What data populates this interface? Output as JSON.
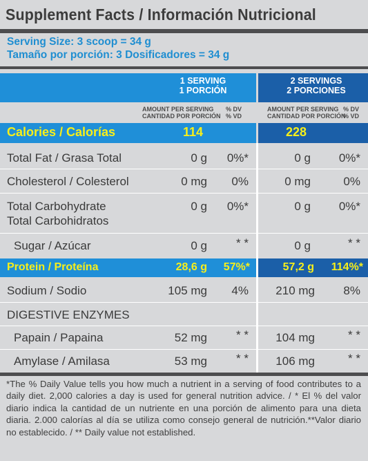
{
  "title": "Supplement Facts / Información Nutricional",
  "serving_size_en": "Serving Size: 3 scoop = 34 g",
  "serving_size_es": "Tamaño por porción:  3 Dosificadores = 34 g",
  "columns": {
    "one": {
      "line1": "1 SERVING",
      "line2": "1 PORCIÓN"
    },
    "two": {
      "line1": "2 SERVINGS",
      "line2": "2 PORCIONES"
    }
  },
  "subheader": {
    "amount_en": "AMOUNT PER SERVING",
    "amount_es": "CANTIDAD POR PORCIÓN",
    "dv_en": "% DV",
    "dv_es": "% VD"
  },
  "calories": {
    "label": "Calories / Calorías",
    "one": "114",
    "two": "228"
  },
  "rows": {
    "fat": {
      "label": "Total Fat / Grasa Total",
      "one_amt": "0 g",
      "one_dv": "0%*",
      "two_amt": "0 g",
      "two_dv": "0%*"
    },
    "chol": {
      "label": "Cholesterol / Colesterol",
      "one_amt": "0 mg",
      "one_dv": "0%",
      "two_amt": "0 mg",
      "two_dv": "0%"
    },
    "carb": {
      "label1": "Total Carbohydrate",
      "label2": "Total Carbohidratos",
      "one_amt": "0  g",
      "one_dv": "0%*",
      "two_amt": "0 g",
      "two_dv": "0%*"
    },
    "sugar": {
      "label": "Sugar / Azúcar",
      "one_amt": "0 g",
      "one_dv": "* *",
      "two_amt": "0 g",
      "two_dv": "* *"
    },
    "sodium": {
      "label": "Sodium / Sodio",
      "one_amt": "105 mg",
      "one_dv": "4%",
      "two_amt": "210 mg",
      "two_dv": "8%"
    },
    "enzymes": {
      "label": "DIGESTIVE ENZYMES"
    },
    "papain": {
      "label": "Papain / Papaina",
      "one_amt": "52 mg",
      "one_dv": "* *",
      "two_amt": "104 mg",
      "two_dv": "* *"
    },
    "amylase": {
      "label": "Amylase / Amilasa",
      "one_amt": "53 mg",
      "one_dv": "* *",
      "two_amt": "106 mg",
      "two_dv": "* *"
    }
  },
  "protein": {
    "label": "Protein / Proteína",
    "one_amt": "28,6 g",
    "one_dv": "57%*",
    "two_amt": "57,2 g",
    "two_dv": "114%*"
  },
  "footnote": "*The % Daily Value tells you how much a nutrient in a serving of food contributes to a daily diet. 2,000 calories a day is used for general nutrition advice. / * El % del valor diario indica la cantidad de un nutriente en una porción de alimento para una dieta diaria. 2.000 calorías al día se utiliza como consejo general de nutrición.**Valor diario no establecido. / ** Daily value not established.",
  "colors": {
    "blue": "#1f8fd8",
    "dark_blue": "#1b5fa8",
    "yellow": "#f7ef1a",
    "background": "#d7d8da"
  }
}
